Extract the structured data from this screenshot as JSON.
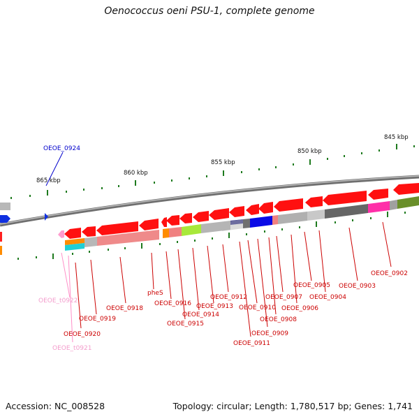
{
  "header": {
    "title": "Oenococcus oeni PSU-1, complete genome"
  },
  "footer": {
    "accession": "Accession: NC_008528",
    "summary": "Topology: circular; Length: 1,780,517 bp; Genes: 1,741"
  },
  "ruler": {
    "ticks": [
      {
        "label": "845 kbp"
      },
      {
        "label": "850 kbp"
      },
      {
        "label": "855 kbp"
      },
      {
        "label": "860 kbp"
      },
      {
        "label": "865 kbp"
      }
    ]
  },
  "colors": {
    "cds": "#ff0000",
    "cds_light": "#f08080",
    "trna": "#ff8fc8",
    "blue_label": "#0000cc",
    "backbone": "#888888",
    "tick": "#1e7a1e"
  },
  "labels": {
    "oeoe_0924": "OEOE_0924",
    "oeoe_0902": "OEOE_0902",
    "oeoe_0903": "OEOE_0903",
    "oeoe_0904": "OEOE_0904",
    "oeoe_0905": "OEOE_0905",
    "oeoe_0906": "OEOE_0906",
    "oeoe_0907": "OEOE_0907",
    "oeoe_0908": "OEOE_0908",
    "oeoe_0909": "OEOE_0909",
    "oeoe_0910": "OEOE_0910",
    "oeoe_0911": "OEOE_0911",
    "oeoe_0912": "OEOE_0912",
    "oeoe_0913": "OEOE_0913",
    "oeoe_0914": "OEOE_0914",
    "oeoe_0915": "OEOE_0915",
    "oeoe_0916": "OEOE_0916",
    "phes": "pheS",
    "oeoe_0918": "OEOE_0918",
    "oeoe_0919": "OEOE_0919",
    "oeoe_0920": "OEOE_0920",
    "oeoe_t0921": "OEOE_t0921",
    "oeoe_t0922": "OEOE_t0922"
  }
}
